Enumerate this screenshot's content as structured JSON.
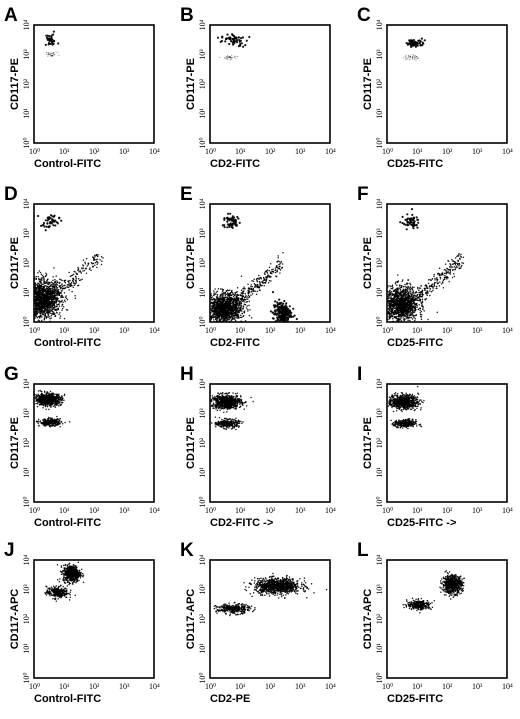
{
  "chart_data": [
    {
      "panel": "A",
      "type": "scatter",
      "xlabel": "Control-FITC",
      "ylabel": "CD117-PE",
      "x_ticks": [
        "10⁰",
        "10¹",
        "10²",
        "10³",
        "10⁴"
      ],
      "y_ticks": [
        "10⁰",
        "10¹",
        "10²",
        "10³",
        "10⁴"
      ],
      "xscale": "log",
      "yscale": "log",
      "xlim": [
        1,
        10000
      ],
      "ylim": [
        1,
        10000
      ],
      "populations": [
        {
          "cx": 3.5,
          "cy": 3000,
          "sx": 0.12,
          "sy": 0.1,
          "n": 32,
          "tone": "dark"
        },
        {
          "cx": 4,
          "cy": 1000,
          "sx": 0.1,
          "sy": 0.04,
          "n": 35,
          "tone": "light"
        }
      ]
    },
    {
      "panel": "B",
      "type": "scatter",
      "xlabel": "CD2-FITC",
      "ylabel": "CD117-PE",
      "x_ticks": [
        "10⁰",
        "10¹",
        "10²",
        "10³",
        "10⁴"
      ],
      "y_ticks": [
        "10⁰",
        "10¹",
        "10²",
        "10³",
        "10⁴"
      ],
      "xscale": "log",
      "yscale": "log",
      "xlim": [
        1,
        10000
      ],
      "ylim": [
        1,
        10000
      ],
      "populations": [
        {
          "cx": 6,
          "cy": 3000,
          "sx": 0.2,
          "sy": 0.1,
          "n": 55,
          "tone": "dark"
        },
        {
          "cx": 5,
          "cy": 800,
          "sx": 0.12,
          "sy": 0.04,
          "n": 35,
          "tone": "light"
        }
      ]
    },
    {
      "panel": "C",
      "type": "scatter",
      "xlabel": "CD25-FITC",
      "ylabel": "CD117-PE",
      "x_ticks": [
        "10⁰",
        "10¹",
        "10²",
        "10³",
        "10⁴"
      ],
      "y_ticks": [
        "10⁰",
        "10¹",
        "10²",
        "10³",
        "10⁴"
      ],
      "xscale": "log",
      "yscale": "log",
      "xlim": [
        1,
        10000
      ],
      "ylim": [
        1,
        10000
      ],
      "populations": [
        {
          "cx": 9,
          "cy": 2500,
          "sx": 0.15,
          "sy": 0.07,
          "n": 55,
          "tone": "dark"
        },
        {
          "cx": 6,
          "cy": 800,
          "sx": 0.12,
          "sy": 0.05,
          "n": 40,
          "tone": "light"
        }
      ]
    },
    {
      "panel": "D",
      "type": "scatter",
      "xlabel": "Control-FITC",
      "ylabel": "CD117-PE",
      "x_ticks": [
        "10⁰",
        "10¹",
        "10²",
        "10³",
        "10⁴"
      ],
      "y_ticks": [
        "10⁰",
        "10¹",
        "10²",
        "10³",
        "10⁴"
      ],
      "xscale": "log",
      "yscale": "log",
      "xlim": [
        1,
        10000
      ],
      "ylim": [
        1,
        10000
      ],
      "populations": [
        {
          "cx": 3.5,
          "cy": 2500,
          "sx": 0.15,
          "sy": 0.12,
          "n": 45,
          "tone": "dark"
        },
        {
          "cx": 2,
          "cy": 6,
          "sx": 0.3,
          "sy": 0.32,
          "n": 1400,
          "tone": "dark"
        },
        {
          "cx": 15,
          "cy": 25,
          "sx": 0.45,
          "sy": 0.4,
          "n": 260,
          "tone": "diag"
        }
      ]
    },
    {
      "panel": "E",
      "type": "scatter",
      "xlabel": "CD2-FITC",
      "ylabel": "CD117-PE",
      "x_ticks": [
        "10⁰",
        "10¹",
        "10²",
        "10³",
        "10⁴"
      ],
      "y_ticks": [
        "10⁰",
        "10¹",
        "10²",
        "10³",
        "10⁴"
      ],
      "xscale": "log",
      "yscale": "log",
      "xlim": [
        1,
        10000
      ],
      "ylim": [
        1,
        10000
      ],
      "populations": [
        {
          "cx": 5,
          "cy": 2500,
          "sx": 0.15,
          "sy": 0.12,
          "n": 60,
          "tone": "dark"
        },
        {
          "cx": 3,
          "cy": 3,
          "sx": 0.3,
          "sy": 0.25,
          "n": 1300,
          "tone": "dark"
        },
        {
          "cx": 25,
          "cy": 15,
          "sx": 0.4,
          "sy": 0.4,
          "n": 320,
          "tone": "diag"
        },
        {
          "cx": 250,
          "cy": 2,
          "sx": 0.15,
          "sy": 0.2,
          "n": 200,
          "tone": "dark"
        }
      ]
    },
    {
      "panel": "F",
      "type": "scatter",
      "xlabel": "CD25-FITC",
      "ylabel": "CD117-PE",
      "x_ticks": [
        "10⁰",
        "10¹",
        "10²",
        "10³",
        "10⁴"
      ],
      "y_ticks": [
        "10⁰",
        "10¹",
        "10²",
        "10³",
        "10⁴"
      ],
      "xscale": "log",
      "yscale": "log",
      "xlim": [
        1,
        10000
      ],
      "ylim": [
        1,
        10000
      ],
      "populations": [
        {
          "cx": 6,
          "cy": 2500,
          "sx": 0.15,
          "sy": 0.12,
          "n": 55,
          "tone": "dark"
        },
        {
          "cx": 3,
          "cy": 4,
          "sx": 0.28,
          "sy": 0.3,
          "n": 1200,
          "tone": "dark"
        },
        {
          "cx": 30,
          "cy": 20,
          "sx": 0.45,
          "sy": 0.4,
          "n": 320,
          "tone": "diag"
        }
      ]
    },
    {
      "panel": "G",
      "type": "scatter",
      "xlabel": "Control-FITC",
      "ylabel": "CD117-PE",
      "x_ticks": [
        "10⁰",
        "10¹",
        "10²",
        "10³",
        "10⁴"
      ],
      "y_ticks": [
        "10⁰",
        "10¹",
        "10²",
        "10³",
        "10⁴"
      ],
      "xscale": "log",
      "yscale": "log",
      "xlim": [
        1,
        10000
      ],
      "ylim": [
        1,
        10000
      ],
      "populations": [
        {
          "cx": 3,
          "cy": 3000,
          "sx": 0.22,
          "sy": 0.1,
          "n": 700,
          "tone": "dark"
        },
        {
          "cx": 3.5,
          "cy": 500,
          "sx": 0.18,
          "sy": 0.06,
          "n": 280,
          "tone": "dark"
        }
      ]
    },
    {
      "panel": "H",
      "type": "scatter",
      "xlabel": "CD2-FITC ->",
      "ylabel": "CD117-PE",
      "x_ticks": [
        "10⁰",
        "10¹",
        "10²",
        "10³",
        "10⁴"
      ],
      "y_ticks": [
        "10⁰",
        "10¹",
        "10²",
        "10³",
        "10⁴"
      ],
      "xscale": "log",
      "yscale": "log",
      "xlim": [
        1,
        10000
      ],
      "ylim": [
        1,
        10000
      ],
      "populations": [
        {
          "cx": 3.5,
          "cy": 2500,
          "sx": 0.25,
          "sy": 0.12,
          "n": 700,
          "tone": "dark"
        },
        {
          "cx": 4,
          "cy": 450,
          "sx": 0.18,
          "sy": 0.07,
          "n": 280,
          "tone": "dark"
        }
      ]
    },
    {
      "panel": "I",
      "type": "scatter",
      "xlabel": "CD25-FITC ->",
      "ylabel": "CD117-PE",
      "x_ticks": [
        "10⁰",
        "10¹",
        "10²",
        "10³",
        "10⁴"
      ],
      "y_ticks": [
        "10⁰",
        "10¹",
        "10²",
        "10³",
        "10⁴"
      ],
      "xscale": "log",
      "yscale": "log",
      "xlim": [
        1,
        10000
      ],
      "ylim": [
        1,
        10000
      ],
      "populations": [
        {
          "cx": 3.5,
          "cy": 2500,
          "sx": 0.25,
          "sy": 0.12,
          "n": 700,
          "tone": "dark"
        },
        {
          "cx": 4,
          "cy": 450,
          "sx": 0.18,
          "sy": 0.07,
          "n": 280,
          "tone": "dark"
        }
      ]
    },
    {
      "panel": "J",
      "type": "scatter",
      "xlabel": "Control-FITC",
      "ylabel": "CD117-APC",
      "x_ticks": [
        "10⁰",
        "10¹",
        "10²",
        "10³",
        "10⁴"
      ],
      "y_ticks": [
        "10⁰",
        "10¹",
        "10²",
        "10³",
        "10⁴"
      ],
      "xscale": "log",
      "yscale": "log",
      "xlim": [
        1,
        10000
      ],
      "ylim": [
        1,
        10000
      ],
      "populations": [
        {
          "cx": 18,
          "cy": 3500,
          "sx": 0.14,
          "sy": 0.14,
          "n": 550,
          "tone": "dark"
        },
        {
          "cx": 6,
          "cy": 800,
          "sx": 0.18,
          "sy": 0.1,
          "n": 280,
          "tone": "dark"
        }
      ]
    },
    {
      "panel": "K",
      "type": "scatter",
      "xlabel": "CD2-PE",
      "ylabel": "CD117-APC",
      "x_ticks": [
        "10⁰",
        "10¹",
        "10²",
        "10³",
        "10⁴"
      ],
      "y_ticks": [
        "10⁰",
        "10¹",
        "10²",
        "10³",
        "10⁴"
      ],
      "xscale": "log",
      "yscale": "log",
      "xlim": [
        1,
        10000
      ],
      "ylim": [
        1,
        10000
      ],
      "populations": [
        {
          "cx": 180,
          "cy": 1300,
          "sx": 0.38,
          "sy": 0.13,
          "n": 900,
          "tone": "dark"
        },
        {
          "cx": 6,
          "cy": 220,
          "sx": 0.28,
          "sy": 0.08,
          "n": 320,
          "tone": "dark"
        }
      ]
    },
    {
      "panel": "L",
      "type": "scatter",
      "xlabel": "CD25-FITC",
      "ylabel": "CD117-APC",
      "x_ticks": [
        "10⁰",
        "10¹",
        "10²",
        "10³",
        "10⁴"
      ],
      "y_ticks": [
        "10⁰",
        "10¹",
        "10²",
        "10³",
        "10⁴"
      ],
      "xscale": "log",
      "yscale": "log",
      "xlim": [
        1,
        10000
      ],
      "ylim": [
        1,
        10000
      ],
      "populations": [
        {
          "cx": 150,
          "cy": 1500,
          "sx": 0.16,
          "sy": 0.15,
          "n": 650,
          "tone": "dark"
        },
        {
          "cx": 12,
          "cy": 300,
          "sx": 0.2,
          "sy": 0.08,
          "n": 280,
          "tone": "dark"
        }
      ]
    }
  ]
}
